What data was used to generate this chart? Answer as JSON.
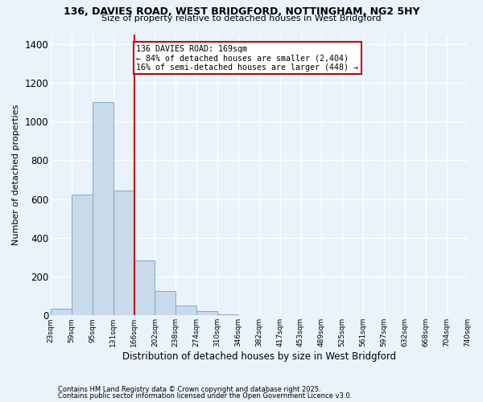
{
  "title_line1": "136, DAVIES ROAD, WEST BRIDGFORD, NOTTINGHAM, NG2 5HY",
  "title_line2": "Size of property relative to detached houses in West Bridgford",
  "xlabel": "Distribution of detached houses by size in West Bridgford",
  "ylabel": "Number of detached properties",
  "bin_labels": [
    "23sqm",
    "59sqm",
    "95sqm",
    "131sqm",
    "166sqm",
    "202sqm",
    "238sqm",
    "274sqm",
    "310sqm",
    "346sqm",
    "382sqm",
    "417sqm",
    "453sqm",
    "489sqm",
    "525sqm",
    "561sqm",
    "597sqm",
    "632sqm",
    "668sqm",
    "704sqm",
    "740sqm"
  ],
  "bar_values": [
    35,
    625,
    1100,
    645,
    285,
    125,
    50,
    20,
    5,
    0,
    0,
    0,
    0,
    0,
    0,
    0,
    0,
    0,
    0,
    0
  ],
  "bar_color": "#c9daea",
  "bar_edge_color": "#7fa8c8",
  "background_color": "#eaf2fb",
  "grid_color": "#ffffff",
  "vline_index": 4,
  "vline_color": "#cc0000",
  "annotation_text": "136 DAVIES ROAD: 169sqm\n← 84% of detached houses are smaller (2,404)\n16% of semi-detached houses are larger (448) →",
  "annotation_box_color": "#ffffff",
  "annotation_edge_color": "#cc0000",
  "ylim": [
    0,
    1450
  ],
  "yticks": [
    0,
    200,
    400,
    600,
    800,
    1000,
    1200,
    1400
  ],
  "footnote_line1": "Contains HM Land Registry data © Crown copyright and database right 2025.",
  "footnote_line2": "Contains public sector information licensed under the Open Government Licence v3.0.",
  "n_bins": 20
}
